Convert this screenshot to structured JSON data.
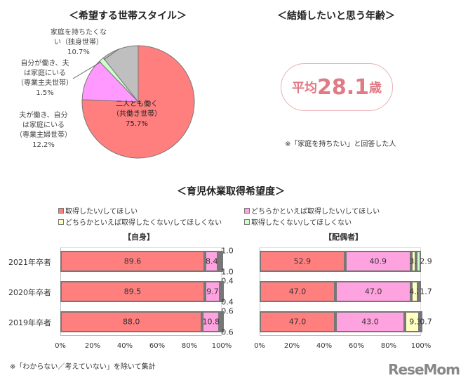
{
  "pie": {
    "title": "＜希望する世帯スタイル＞",
    "labels": [
      {
        "l1": "二人とも働く",
        "l2": "（共働き世帯）",
        "pct": "75.7%"
      },
      {
        "l1": "夫が働き、自分",
        "l2": "は家庭にいる",
        "l3": "（専業主婦世帯）",
        "pct": "12.2%"
      },
      {
        "l1": "自分が働き、夫",
        "l2": "は家庭にいる",
        "l3": "（専業主夫世帯）",
        "pct": "1.5%"
      },
      {
        "l1": "家庭を持ちたくな",
        "l2": "い（独身世帯）",
        "pct": "10.7%"
      }
    ]
  },
  "age": {
    "title": "＜結婚したいと思う年齢＞",
    "prefix": "平均",
    "value": "28.1",
    "suffix": "歳",
    "note": "※「家庭を持ちたい」と回答した人"
  },
  "bars": {
    "title": "＜育児休業取得希望度＞",
    "footnote": "※「わからない／考えていない」を除いて集計",
    "logo": "ReseMom"
  },
  "chart_data": [
    {
      "type": "pie",
      "title": "＜希望する世帯スタイル＞",
      "categories": [
        "二人とも働く（共働き世帯）",
        "夫が働き、自分は家庭にいる（専業主婦世帯）",
        "自分が働き、夫は家庭にいる（専業主夫世帯）",
        "家庭を持ちたくない（独身世帯）"
      ],
      "values": [
        75.7,
        12.2,
        1.5,
        10.7
      ],
      "colors": [
        "#ff7f7f",
        "#ff99ff",
        "#ccffcc",
        "#bfbfbf"
      ]
    },
    {
      "type": "bar",
      "stacked": true,
      "orientation": "horizontal",
      "title": "【自身】",
      "categories": [
        "2021年卒者",
        "2020年卒者",
        "2019年卒者"
      ],
      "series": [
        {
          "name": "取得したい/してほしい",
          "values": [
            89.6,
            89.5,
            88.0
          ]
        },
        {
          "name": "どちらかといえば取得したい/してほしい",
          "values": [
            8.4,
            9.7,
            10.8
          ]
        },
        {
          "name": "どちらかといえば取得したくない/してほしくない",
          "values": [
            1.0,
            0.4,
            0.6
          ]
        },
        {
          "name": "取得したくない/してほしくない",
          "values": [
            1.0,
            0.4,
            0.6
          ]
        }
      ],
      "xticks": [
        "0%",
        "20%",
        "40%",
        "60%",
        "80%",
        "100%"
      ],
      "xlim": [
        0,
        100
      ]
    },
    {
      "type": "bar",
      "stacked": true,
      "orientation": "horizontal",
      "title": "【配偶者】",
      "categories": [
        "2021年卒者",
        "2020年卒者",
        "2019年卒者"
      ],
      "series": [
        {
          "name": "取得したい/してほしい",
          "values": [
            52.9,
            47.0,
            47.0
          ]
        },
        {
          "name": "どちらかといえば取得したい/してほしい",
          "values": [
            40.9,
            47.0,
            43.0
          ]
        },
        {
          "name": "どちらかといえば取得したくない/してほしくない",
          "values": [
            3.3,
            4.2,
            9.3
          ]
        },
        {
          "name": "取得したくない/してほしくない",
          "values": [
            2.9,
            1.7,
            0.7
          ]
        }
      ],
      "xticks": [
        "0%",
        "20%",
        "40%",
        "60%",
        "80%",
        "100%"
      ],
      "xlim": [
        0,
        100
      ]
    }
  ],
  "legend": [
    {
      "label": "取得したい/してほしい",
      "color": "#ff7f7f"
    },
    {
      "label": "どちらかといえば取得したい/してほしい",
      "color": "#ffa3e0"
    },
    {
      "label": "どちらかといえば取得したくない/してほしくない",
      "color": "#ffffc0"
    },
    {
      "label": "取得したくない/してほしくない",
      "color": "#ccffcc"
    }
  ]
}
